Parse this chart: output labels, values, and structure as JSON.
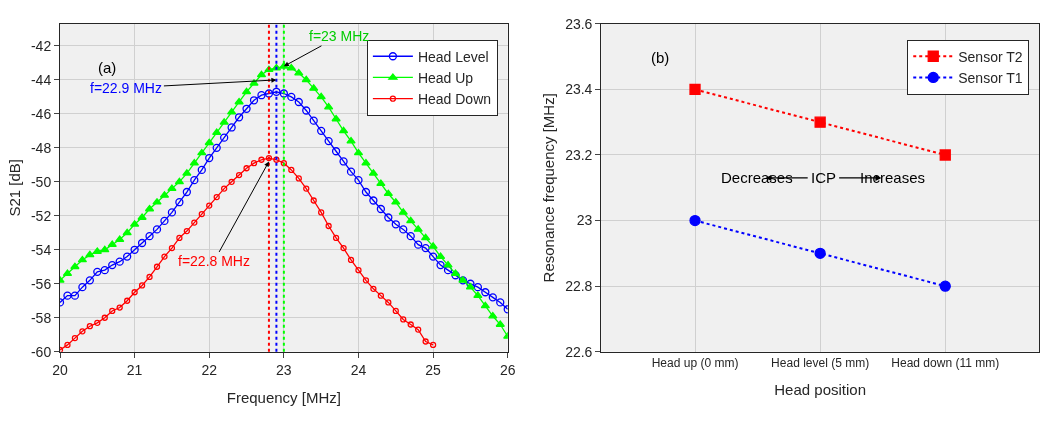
{
  "chart_data": [
    {
      "type": "line",
      "xlabel": "Frequency [MHz]",
      "ylabel": "S21 [dB]",
      "x": [
        20.0,
        20.1,
        20.2,
        20.3,
        20.4,
        20.5,
        20.6,
        20.7,
        20.8,
        20.9,
        21.0,
        21.1,
        21.2,
        21.3,
        21.4,
        21.5,
        21.6,
        21.7,
        21.8,
        21.9,
        22.0,
        22.1,
        22.2,
        22.3,
        22.4,
        22.5,
        22.6,
        22.7,
        22.8,
        22.9,
        23.0,
        23.1,
        23.2,
        23.3,
        23.4,
        23.5,
        23.6,
        23.7,
        23.8,
        23.9,
        24.0,
        24.1,
        24.2,
        24.3,
        24.4,
        24.5,
        24.6,
        24.7,
        24.8,
        24.9,
        25.0,
        25.1,
        25.2,
        25.3,
        25.4,
        25.5,
        25.6,
        25.7,
        25.8,
        25.9,
        26.0
      ],
      "series": [
        {
          "name": "Head Level",
          "color": "#0000ff",
          "marker": "circle",
          "line_style": "solid",
          "values": [
            -57.1,
            -56.7,
            -56.7,
            -56.2,
            -55.8,
            -55.3,
            -55.2,
            -54.9,
            -54.7,
            -54.4,
            -54.0,
            -53.6,
            -53.2,
            -52.8,
            -52.3,
            -51.8,
            -51.2,
            -50.6,
            -49.9,
            -49.3,
            -48.6,
            -48.0,
            -47.4,
            -46.8,
            -46.2,
            -45.7,
            -45.2,
            -44.9,
            -44.8,
            -44.7,
            -44.8,
            -45.0,
            -45.3,
            -45.8,
            -46.4,
            -47.0,
            -47.6,
            -48.2,
            -48.8,
            -49.4,
            -49.9,
            -50.6,
            -51.1,
            -51.6,
            -52.1,
            -52.5,
            -52.8,
            -53.2,
            -53.7,
            -53.9,
            -54.4,
            -54.9,
            -55.2,
            -55.5,
            -55.8,
            -56.0,
            -56.2,
            -56.5,
            -56.8,
            -57.1,
            -57.5
          ]
        },
        {
          "name": "Head Up",
          "color": "#00ff00",
          "marker": "triangle",
          "line_style": "solid",
          "values": [
            -55.8,
            -55.4,
            -55.0,
            -54.6,
            -54.3,
            -54.1,
            -54.0,
            -53.7,
            -53.4,
            -53.0,
            -52.5,
            -52.1,
            -51.6,
            -51.2,
            -50.8,
            -50.4,
            -50.0,
            -49.5,
            -48.9,
            -48.3,
            -47.7,
            -47.1,
            -46.5,
            -45.9,
            -45.3,
            -44.7,
            -44.2,
            -43.7,
            -43.4,
            -43.3,
            -43.2,
            -43.3,
            -43.6,
            -44.0,
            -44.5,
            -45.0,
            -45.6,
            -46.3,
            -47.0,
            -47.6,
            -48.3,
            -48.9,
            -49.5,
            -50.1,
            -50.7,
            -51.2,
            -51.8,
            -52.3,
            -52.8,
            -53.3,
            -53.8,
            -54.4,
            -54.9,
            -55.4,
            -55.8,
            -56.2,
            -56.7,
            -57.3,
            -57.9,
            -58.4,
            -59.1
          ]
        },
        {
          "name": "Head Down",
          "color": "#ff0000",
          "marker": "circle",
          "line_style": "solid",
          "values": [
            -59.9,
            -59.6,
            -59.2,
            -58.8,
            -58.5,
            -58.3,
            -58.0,
            -57.6,
            -57.4,
            -57.0,
            -56.5,
            -56.1,
            -55.6,
            -55.0,
            -54.4,
            -53.9,
            -53.3,
            -52.9,
            -52.4,
            -51.9,
            -51.4,
            -50.9,
            -50.4,
            -50.0,
            -49.6,
            -49.2,
            -48.9,
            -48.7,
            -48.6,
            -48.7,
            -48.9,
            -49.3,
            -49.8,
            -50.4,
            -51.1,
            -51.8,
            -52.6,
            -53.3,
            -53.9,
            -54.6,
            -55.2,
            -55.8,
            -56.3,
            -56.7,
            -57.1,
            -57.6,
            -58.1,
            -58.4,
            -58.7,
            -59.4,
            -59.6,
            null,
            null,
            null,
            null,
            null,
            null,
            null,
            null,
            null,
            null
          ]
        }
      ],
      "xlim": [
        20,
        26
      ],
      "xticks": [
        20,
        21,
        22,
        23,
        24,
        25,
        26
      ],
      "ylim": [
        -60,
        -40.7
      ],
      "yticks": [
        -60,
        -58,
        -56,
        -54,
        -52,
        -50,
        -48,
        -46,
        -44,
        -42
      ],
      "ref_lines": [
        {
          "axis": "x",
          "value": 22.8,
          "color": "#ff0000",
          "line_style": "dotted"
        },
        {
          "axis": "x",
          "value": 22.9,
          "color": "#0000ff",
          "line_style": "dotted"
        },
        {
          "axis": "x",
          "value": 23.0,
          "color": "#00ff00",
          "line_style": "dotted"
        }
      ],
      "annotations": [
        "(a)",
        {
          "text": "f=23 MHz",
          "x": 23.0,
          "y": -43.2
        },
        {
          "text": "f=22.9 MHz",
          "x": 22.9,
          "y": -44.0
        },
        {
          "text": "f=22.8 MHz",
          "x": 22.8,
          "y": -48.8
        }
      ],
      "grid": true,
      "legend": "top right"
    },
    {
      "type": "line",
      "xlabel": "Head position",
      "ylabel": "Resonance frequency [MHz]",
      "categories": [
        "Head up (0 mm)",
        "Head level (5 mm)",
        "Head down (11 mm)"
      ],
      "series": [
        {
          "name": "Sensor T2",
          "color": "#ff0000",
          "marker": "square",
          "line_style": "dotted",
          "values": [
            23.4,
            23.3,
            23.2
          ]
        },
        {
          "name": "Sensor T1",
          "color": "#0000ff",
          "marker": "circle",
          "line_style": "dotted",
          "values": [
            23.0,
            22.9,
            22.8
          ]
        }
      ],
      "ylim": [
        22.6,
        23.6
      ],
      "yticks": [
        22.6,
        22.8,
        23,
        23.2,
        23.4,
        23.6
      ],
      "annotations": [
        "(b)",
        "Decreases",
        "ICP",
        "Increases"
      ],
      "grid": true,
      "legend": "top right"
    }
  ]
}
